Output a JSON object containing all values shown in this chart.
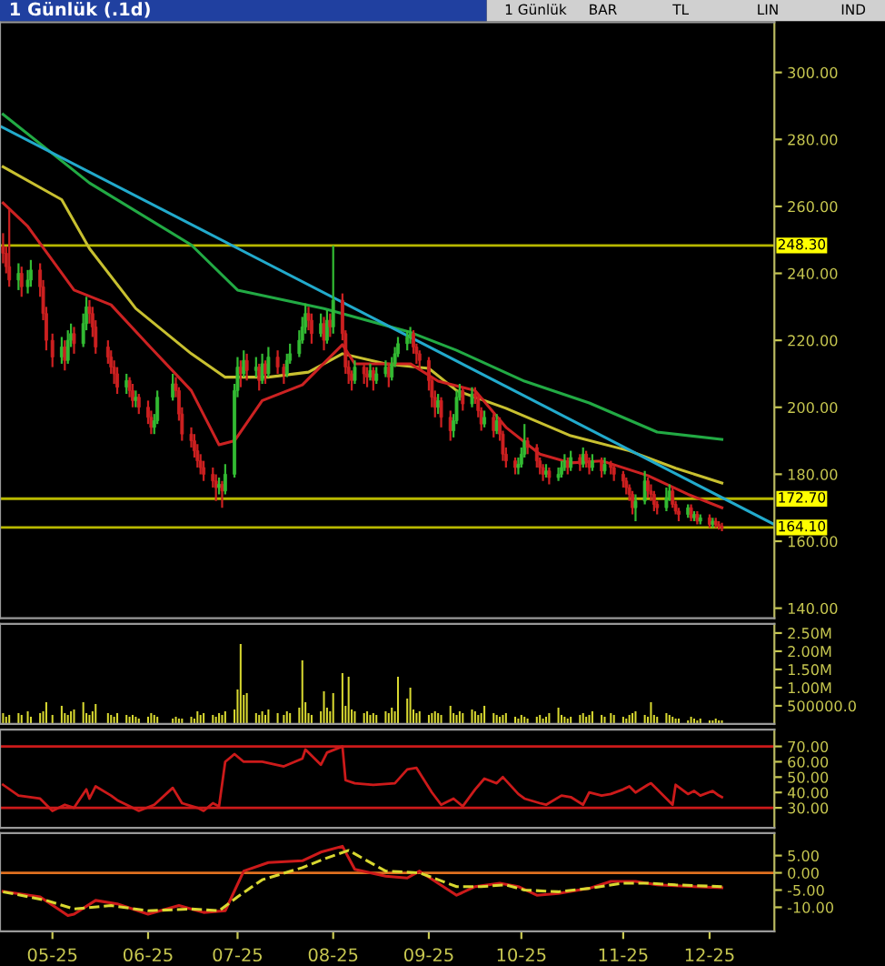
{
  "chart_data": [
    {
      "type": "candlestick",
      "title": "1 Günlük (.1d)",
      "annotations": [
        "1 Günlük",
        "BAR",
        "TL",
        "LIN",
        "IND"
      ],
      "x": [
        "2025-04-16",
        "2025-04-17",
        "2025-04-18",
        "2025-04-21",
        "2025-04-22",
        "2025-04-24",
        "2025-04-25",
        "2025-04-28",
        "2025-04-29",
        "2025-04-30",
        "2025-05-02",
        "2025-05-05",
        "2025-05-06",
        "2025-05-07",
        "2025-05-08",
        "2025-05-09",
        "2025-05-12",
        "2025-05-13",
        "2025-05-14",
        "2025-05-15",
        "2025-05-16",
        "2025-05-20",
        "2025-05-21",
        "2025-05-22",
        "2025-05-23",
        "2025-05-26",
        "2025-05-27",
        "2025-05-28",
        "2025-05-29",
        "2025-05-30",
        "2025-06-02",
        "2025-06-03",
        "2025-06-04",
        "2025-06-05",
        "2025-06-10",
        "2025-06-11",
        "2025-06-12",
        "2025-06-13",
        "2025-06-16",
        "2025-06-17",
        "2025-06-18",
        "2025-06-19",
        "2025-06-20",
        "2025-06-23",
        "2025-06-24",
        "2025-06-25",
        "2025-06-26",
        "2025-06-27",
        "2025-06-30",
        "2025-07-01",
        "2025-07-02",
        "2025-07-03",
        "2025-07-04",
        "2025-07-07",
        "2025-07-08",
        "2025-07-09",
        "2025-07-10",
        "2025-07-11",
        "2025-07-14",
        "2025-07-16",
        "2025-07-17",
        "2025-07-18",
        "2025-07-21",
        "2025-07-22",
        "2025-07-23",
        "2025-07-24",
        "2025-07-25",
        "2025-07-28",
        "2025-07-29",
        "2025-07-30",
        "2025-07-31",
        "2025-08-01",
        "2025-08-04",
        "2025-08-05",
        "2025-08-06",
        "2025-08-07",
        "2025-08-08",
        "2025-08-11",
        "2025-08-12",
        "2025-08-13",
        "2025-08-14",
        "2025-08-15",
        "2025-08-18",
        "2025-08-19",
        "2025-08-20",
        "2025-08-21",
        "2025-08-22",
        "2025-08-25",
        "2025-08-26",
        "2025-08-27",
        "2025-08-28",
        "2025-08-29",
        "2025-09-01",
        "2025-09-02",
        "2025-09-03",
        "2025-09-04",
        "2025-09-05",
        "2025-09-08",
        "2025-09-09",
        "2025-09-10",
        "2025-09-11",
        "2025-09-12",
        "2025-09-15",
        "2025-09-16",
        "2025-09-17",
        "2025-09-18",
        "2025-09-19",
        "2025-09-22",
        "2025-09-23",
        "2025-09-24",
        "2025-09-25",
        "2025-09-26",
        "2025-09-29",
        "2025-09-30",
        "2025-10-01",
        "2025-10-02",
        "2025-10-03",
        "2025-10-06",
        "2025-10-07",
        "2025-10-08",
        "2025-10-09",
        "2025-10-10",
        "2025-10-13",
        "2025-10-14",
        "2025-10-15",
        "2025-10-16",
        "2025-10-17",
        "2025-10-20",
        "2025-10-21",
        "2025-10-22",
        "2025-10-23",
        "2025-10-24",
        "2025-10-27",
        "2025-10-28",
        "2025-10-30",
        "2025-10-31",
        "2025-11-03",
        "2025-11-04",
        "2025-11-05",
        "2025-11-06",
        "2025-11-07",
        "2025-11-10",
        "2025-11-11",
        "2025-11-12",
        "2025-11-13",
        "2025-11-14",
        "2025-11-17",
        "2025-11-18",
        "2025-11-19",
        "2025-11-20",
        "2025-11-21",
        "2025-11-24",
        "2025-11-25",
        "2025-11-26",
        "2025-11-27",
        "2025-11-28",
        "2025-12-01",
        "2025-12-02",
        "2025-12-03",
        "2025-12-04",
        "2025-12-05"
      ],
      "ohlc": [
        [
          248,
          252,
          243,
          246
        ],
        [
          246,
          248,
          240,
          242
        ],
        [
          242,
          259,
          236,
          238
        ],
        [
          238,
          243,
          235,
          240
        ],
        [
          240,
          242,
          233,
          236
        ],
        [
          236,
          241,
          234,
          238
        ],
        [
          238,
          244,
          236,
          241
        ],
        [
          241,
          243,
          233,
          236
        ],
        [
          236,
          238,
          226,
          228
        ],
        [
          228,
          230,
          217,
          220
        ],
        [
          220,
          222,
          212,
          215
        ],
        [
          215,
          221,
          213,
          218
        ],
        [
          218,
          220,
          211,
          214
        ],
        [
          214,
          223,
          213,
          220
        ],
        [
          220,
          225,
          218,
          222
        ],
        [
          222,
          224,
          216,
          219
        ],
        [
          219,
          228,
          218,
          225
        ],
        [
          225,
          233,
          223,
          230
        ],
        [
          230,
          232,
          225,
          228
        ],
        [
          228,
          230,
          221,
          224
        ],
        [
          224,
          226,
          216,
          218
        ],
        [
          218,
          220,
          213,
          215
        ],
        [
          215,
          217,
          210,
          212
        ],
        [
          212,
          214,
          207,
          210
        ],
        [
          210,
          212,
          204,
          206
        ],
        [
          206,
          210,
          204,
          208
        ],
        [
          208,
          209,
          203,
          205
        ],
        [
          205,
          207,
          200,
          202
        ],
        [
          202,
          205,
          200,
          203
        ],
        [
          203,
          204,
          198,
          200
        ],
        [
          200,
          202,
          195,
          197
        ],
        [
          197,
          199,
          192,
          194
        ],
        [
          194,
          198,
          192,
          196
        ],
        [
          196,
          205,
          195,
          203
        ],
        [
          203,
          210,
          202,
          207
        ],
        [
          207,
          209,
          203,
          205
        ],
        [
          205,
          206,
          196,
          198
        ],
        [
          198,
          200,
          190,
          192
        ],
        [
          192,
          194,
          188,
          190
        ],
        [
          190,
          192,
          185,
          187
        ],
        [
          187,
          189,
          182,
          184
        ],
        [
          184,
          186,
          180,
          182
        ],
        [
          182,
          184,
          178,
          180
        ],
        [
          180,
          182,
          176,
          178
        ],
        [
          178,
          180,
          172,
          176
        ],
        [
          176,
          179,
          174,
          177
        ],
        [
          177,
          178,
          170,
          175
        ],
        [
          175,
          183,
          174,
          180
        ],
        [
          180,
          207,
          179,
          205
        ],
        [
          205,
          215,
          203,
          212
        ],
        [
          212,
          214,
          206,
          210
        ],
        [
          210,
          217,
          209,
          214
        ],
        [
          214,
          216,
          208,
          211
        ],
        [
          211,
          215,
          209,
          212
        ],
        [
          212,
          213,
          205,
          208
        ],
        [
          208,
          216,
          207,
          213
        ],
        [
          213,
          214,
          207,
          210
        ],
        [
          210,
          218,
          209,
          215
        ],
        [
          215,
          217,
          210,
          212
        ],
        [
          212,
          213,
          207,
          210
        ],
        [
          210,
          216,
          209,
          214
        ],
        [
          214,
          219,
          213,
          216
        ],
        [
          216,
          223,
          215,
          220
        ],
        [
          220,
          227,
          219,
          224
        ],
        [
          224,
          231,
          222,
          228
        ],
        [
          228,
          230,
          223,
          226
        ],
        [
          226,
          228,
          219,
          222
        ],
        [
          222,
          228,
          221,
          225
        ],
        [
          225,
          227,
          217,
          220
        ],
        [
          220,
          229,
          219,
          226
        ],
        [
          226,
          228,
          221,
          224
        ],
        [
          224,
          248.3,
          222,
          232
        ],
        [
          232,
          234,
          220,
          222
        ],
        [
          222,
          223,
          210,
          212
        ],
        [
          212,
          214,
          207,
          210
        ],
        [
          210,
          211,
          205,
          208
        ],
        [
          208,
          214,
          207,
          212
        ],
        [
          212,
          213,
          207,
          210
        ],
        [
          210,
          212,
          206,
          209
        ],
        [
          209,
          213,
          208,
          211
        ],
        [
          211,
          212,
          205,
          208
        ],
        [
          208,
          212,
          207,
          210
        ],
        [
          210,
          214,
          209,
          212
        ],
        [
          212,
          213,
          206,
          209
        ],
        [
          209,
          215,
          208,
          213
        ],
        [
          213,
          218,
          212,
          216
        ],
        [
          216,
          221,
          215,
          219
        ],
        [
          219,
          223,
          217,
          221
        ],
        [
          221,
          224,
          219,
          222
        ],
        [
          222,
          223,
          216,
          218
        ],
        [
          218,
          219,
          213,
          216
        ],
        [
          216,
          217,
          211,
          214
        ],
        [
          214,
          215,
          205,
          208
        ],
        [
          208,
          209,
          200,
          203
        ],
        [
          203,
          205,
          197,
          200
        ],
        [
          200,
          204,
          198,
          202
        ],
        [
          202,
          203,
          194,
          197
        ],
        [
          197,
          199,
          190,
          193
        ],
        [
          193,
          198,
          191,
          196
        ],
        [
          196,
          205,
          195,
          203
        ],
        [
          203,
          207,
          202,
          205
        ],
        [
          205,
          206,
          199,
          201
        ],
        [
          201,
          206,
          200,
          204
        ],
        [
          204,
          206,
          201,
          203
        ],
        [
          203,
          204,
          197,
          199
        ],
        [
          199,
          200,
          193,
          195
        ],
        [
          195,
          199,
          194,
          197
        ],
        [
          197,
          198,
          191,
          193
        ],
        [
          193,
          198,
          192,
          196
        ],
        [
          196,
          197,
          190,
          192
        ],
        [
          192,
          193,
          184,
          186
        ],
        [
          186,
          188,
          182,
          184
        ],
        [
          184,
          185,
          180,
          182
        ],
        [
          182,
          185,
          180,
          183
        ],
        [
          183,
          188,
          182,
          186
        ],
        [
          186,
          195,
          185,
          190
        ],
        [
          190,
          191,
          186,
          188
        ],
        [
          188,
          189,
          182,
          184
        ],
        [
          184,
          185,
          180,
          182
        ],
        [
          182,
          183,
          178,
          180
        ],
        [
          180,
          183,
          179,
          181
        ],
        [
          181,
          182,
          177,
          179
        ],
        [
          179,
          182,
          178,
          180
        ],
        [
          180,
          184,
          179,
          182
        ],
        [
          182,
          186,
          181,
          184
        ],
        [
          184,
          185,
          180,
          182
        ],
        [
          182,
          187,
          181,
          185
        ],
        [
          185,
          186,
          181,
          183
        ],
        [
          183,
          188,
          182,
          186
        ],
        [
          186,
          187,
          182,
          184
        ],
        [
          184,
          185,
          180,
          182
        ],
        [
          182,
          186,
          181,
          184
        ],
        [
          184,
          185,
          179,
          181
        ],
        [
          181,
          185,
          180,
          183
        ],
        [
          183,
          184,
          180,
          182
        ],
        [
          182,
          183,
          178,
          180
        ],
        [
          180,
          181,
          176,
          178
        ],
        [
          178,
          179,
          174,
          176
        ],
        [
          176,
          177,
          172,
          174
        ],
        [
          174,
          175,
          168,
          170
        ],
        [
          170,
          174,
          166,
          172
        ],
        [
          172,
          181,
          171,
          178
        ],
        [
          178,
          179,
          173,
          175
        ],
        [
          175,
          177,
          172,
          174
        ],
        [
          174,
          175,
          169,
          171
        ],
        [
          171,
          172,
          168,
          170
        ],
        [
          170,
          176,
          169,
          173
        ],
        [
          173,
          177,
          172,
          175
        ],
        [
          175,
          176,
          170,
          171
        ],
        [
          171,
          172,
          168,
          169
        ],
        [
          169,
          170,
          166,
          168
        ],
        [
          168,
          171,
          167,
          170
        ],
        [
          170,
          171,
          166,
          167
        ],
        [
          167,
          169,
          166,
          168
        ],
        [
          168,
          169,
          165,
          166
        ],
        [
          166,
          168,
          165,
          167
        ],
        [
          167,
          168,
          164,
          165
        ],
        [
          165,
          167,
          164,
          166
        ],
        [
          166,
          167,
          164,
          165
        ],
        [
          165,
          166,
          163.5,
          164.5
        ],
        [
          164.5,
          165.5,
          163,
          164
        ]
      ],
      "colors": [
        "#cc2020",
        "#cc2020",
        "#cc2020",
        "#33bb33",
        "#cc2020",
        "#33bb33",
        "#33bb33",
        "#cc2020",
        "#cc2020",
        "#cc2020",
        "#cc2020",
        "#33bb33",
        "#cc2020",
        "#33bb33",
        "#33bb33",
        "#cc2020",
        "#33bb33",
        "#33bb33",
        "#cc2020",
        "#cc2020",
        "#cc2020",
        "#cc2020",
        "#cc2020",
        "#cc2020",
        "#cc2020",
        "#33bb33",
        "#cc2020",
        "#cc2020",
        "#33bb33",
        "#cc2020",
        "#cc2020",
        "#cc2020",
        "#33bb33",
        "#33bb33",
        "#33bb33",
        "#cc2020",
        "#cc2020",
        "#cc2020",
        "#cc2020",
        "#cc2020",
        "#cc2020",
        "#cc2020",
        "#cc2020",
        "#cc2020",
        "#cc2020",
        "#33bb33",
        "#cc2020",
        "#33bb33",
        "#33bb33",
        "#33bb33",
        "#cc2020",
        "#33bb33",
        "#cc2020",
        "#33bb33",
        "#cc2020",
        "#33bb33",
        "#cc2020",
        "#33bb33",
        "#cc2020",
        "#cc2020",
        "#33bb33",
        "#33bb33",
        "#33bb33",
        "#33bb33",
        "#33bb33",
        "#cc2020",
        "#cc2020",
        "#33bb33",
        "#cc2020",
        "#33bb33",
        "#cc2020",
        "#33bb33",
        "#cc2020",
        "#cc2020",
        "#cc2020",
        "#cc2020",
        "#33bb33",
        "#cc2020",
        "#cc2020",
        "#33bb33",
        "#cc2020",
        "#33bb33",
        "#33bb33",
        "#cc2020",
        "#33bb33",
        "#33bb33",
        "#33bb33",
        "#33bb33",
        "#33bb33",
        "#cc2020",
        "#cc2020",
        "#cc2020",
        "#cc2020",
        "#cc2020",
        "#cc2020",
        "#33bb33",
        "#cc2020",
        "#cc2020",
        "#33bb33",
        "#33bb33",
        "#33bb33",
        "#cc2020",
        "#33bb33",
        "#cc2020",
        "#cc2020",
        "#cc2020",
        "#33bb33",
        "#cc2020",
        "#33bb33",
        "#cc2020",
        "#cc2020",
        "#cc2020",
        "#cc2020",
        "#33bb33",
        "#33bb33",
        "#33bb33",
        "#cc2020",
        "#cc2020",
        "#cc2020",
        "#cc2020",
        "#33bb33",
        "#cc2020",
        "#33bb33",
        "#33bb33",
        "#33bb33",
        "#cc2020",
        "#33bb33",
        "#cc2020",
        "#33bb33",
        "#cc2020",
        "#cc2020",
        "#33bb33",
        "#cc2020",
        "#33bb33",
        "#cc2020",
        "#cc2020",
        "#cc2020",
        "#cc2020",
        "#cc2020",
        "#cc2020",
        "#33bb33",
        "#33bb33",
        "#cc2020",
        "#cc2020",
        "#cc2020",
        "#cc2020",
        "#33bb33",
        "#33bb33",
        "#cc2020",
        "#cc2020",
        "#cc2020",
        "#33bb33",
        "#cc2020",
        "#33bb33",
        "#cc2020",
        "#33bb33",
        "#cc2020",
        "#33bb33",
        "#cc2020",
        "#cc2020",
        "#cc2020"
      ],
      "series": [
        {
          "type": "line",
          "color": "#22aa44",
          "x": [
            "2025-04-16",
            "2025-05-14",
            "2025-06-16",
            "2025-07-01",
            "2025-07-29",
            "2025-08-26",
            "2025-09-10",
            "2025-10-02",
            "2025-10-23",
            "2025-11-14",
            "2025-12-05"
          ],
          "values": [
            287.5,
            267,
            248.5,
            235,
            229.5,
            222.4,
            217,
            207.8,
            201.3,
            192.6,
            190.4
          ]
        },
        {
          "type": "line",
          "color": "#c8c030",
          "x": [
            "2025-04-16",
            "2025-05-05",
            "2025-05-14",
            "2025-05-29",
            "2025-06-16",
            "2025-06-27",
            "2025-07-11",
            "2025-07-24",
            "2025-08-04",
            "2025-08-18",
            "2025-09-01",
            "2025-09-10",
            "2025-09-26",
            "2025-10-17",
            "2025-11-05",
            "2025-11-20",
            "2025-12-05"
          ],
          "values": [
            271.8,
            262,
            247.4,
            229.5,
            216,
            209,
            209,
            210.5,
            216,
            213,
            211.6,
            205,
            199.7,
            191.5,
            187,
            181.8,
            177.4
          ]
        },
        {
          "type": "line",
          "color": "#cc2222",
          "x": [
            "2025-04-16",
            "2025-04-24",
            "2025-05-09",
            "2025-05-21",
            "2025-06-02",
            "2025-06-16",
            "2025-06-25",
            "2025-06-30",
            "2025-07-09",
            "2025-07-22",
            "2025-08-04",
            "2025-08-08",
            "2025-08-26",
            "2025-09-04",
            "2025-09-16",
            "2025-09-26",
            "2025-10-07",
            "2025-10-17",
            "2025-10-27",
            "2025-11-11",
            "2025-11-24",
            "2025-12-05"
          ],
          "values": [
            261,
            254,
            235,
            230.6,
            218.7,
            205,
            188.8,
            190,
            202,
            206.7,
            218.7,
            213,
            213,
            207.8,
            205,
            194,
            186,
            183.4,
            184,
            179.6,
            174,
            170
          ]
        },
        {
          "type": "line",
          "color": "#22aacc",
          "x": [
            "2025-04-15",
            "2025-12-22"
          ],
          "values": [
            284,
            165
          ]
        }
      ],
      "xlim": [
        "2025-04-15",
        "2025-12-22"
      ],
      "ylim": [
        137,
        315
      ],
      "yticks": [
        {
          "value": 140,
          "label": "140.00"
        },
        {
          "value": 160,
          "label": "160.00"
        },
        {
          "value": 180,
          "label": "180.00"
        },
        {
          "value": 200,
          "label": "200.00"
        },
        {
          "value": 220,
          "label": "220.00"
        },
        {
          "value": 240,
          "label": "240.00"
        },
        {
          "value": 260,
          "label": "260.00"
        },
        {
          "value": 280,
          "label": "280.00"
        },
        {
          "value": 300,
          "label": "300.00"
        }
      ],
      "ref_lines": [
        {
          "axis": "y",
          "value": 248.3,
          "label": "248.30",
          "color": "#b8b800"
        },
        {
          "axis": "y",
          "value": 172.7,
          "label": "172.70",
          "color": "#b8b800"
        },
        {
          "axis": "y",
          "value": 164.1,
          "label": "164.10",
          "color": "#b8b800"
        }
      ],
      "tick_labels": "y"
    },
    {
      "type": "bar",
      "color": "#d8d830",
      "x": [
        "2025-04-16",
        "2025-04-17",
        "2025-04-18",
        "2025-04-21",
        "2025-04-22",
        "2025-04-24",
        "2025-04-25",
        "2025-04-28",
        "2025-04-29",
        "2025-04-30",
        "2025-05-02",
        "2025-05-05",
        "2025-05-06",
        "2025-05-07",
        "2025-05-08",
        "2025-05-09",
        "2025-05-12",
        "2025-05-13",
        "2025-05-14",
        "2025-05-15",
        "2025-05-16",
        "2025-05-20",
        "2025-05-21",
        "2025-05-22",
        "2025-05-23",
        "2025-05-26",
        "2025-05-27",
        "2025-05-28",
        "2025-05-29",
        "2025-05-30",
        "2025-06-02",
        "2025-06-03",
        "2025-06-04",
        "2025-06-05",
        "2025-06-10",
        "2025-06-11",
        "2025-06-12",
        "2025-06-13",
        "2025-06-16",
        "2025-06-17",
        "2025-06-18",
        "2025-06-19",
        "2025-06-20",
        "2025-06-23",
        "2025-06-24",
        "2025-06-25",
        "2025-06-26",
        "2025-06-27",
        "2025-06-30",
        "2025-07-01",
        "2025-07-02",
        "2025-07-03",
        "2025-07-04",
        "2025-07-07",
        "2025-07-08",
        "2025-07-09",
        "2025-07-10",
        "2025-07-11",
        "2025-07-14",
        "2025-07-16",
        "2025-07-17",
        "2025-07-18",
        "2025-07-21",
        "2025-07-22",
        "2025-07-23",
        "2025-07-24",
        "2025-07-25",
        "2025-07-28",
        "2025-07-29",
        "2025-07-30",
        "2025-07-31",
        "2025-08-01",
        "2025-08-04",
        "2025-08-05",
        "2025-08-06",
        "2025-08-07",
        "2025-08-08",
        "2025-08-11",
        "2025-08-12",
        "2025-08-13",
        "2025-08-14",
        "2025-08-15",
        "2025-08-18",
        "2025-08-19",
        "2025-08-20",
        "2025-08-21",
        "2025-08-22",
        "2025-08-25",
        "2025-08-26",
        "2025-08-27",
        "2025-08-28",
        "2025-08-29",
        "2025-09-01",
        "2025-09-02",
        "2025-09-03",
        "2025-09-04",
        "2025-09-05",
        "2025-09-08",
        "2025-09-09",
        "2025-09-10",
        "2025-09-11",
        "2025-09-12",
        "2025-09-15",
        "2025-09-16",
        "2025-09-17",
        "2025-09-18",
        "2025-09-19",
        "2025-09-22",
        "2025-09-23",
        "2025-09-24",
        "2025-09-25",
        "2025-09-26",
        "2025-09-29",
        "2025-09-30",
        "2025-10-01",
        "2025-10-02",
        "2025-10-03",
        "2025-10-06",
        "2025-10-07",
        "2025-10-08",
        "2025-10-09",
        "2025-10-10",
        "2025-10-13",
        "2025-10-14",
        "2025-10-15",
        "2025-10-16",
        "2025-10-17",
        "2025-10-20",
        "2025-10-21",
        "2025-10-22",
        "2025-10-23",
        "2025-10-24",
        "2025-10-27",
        "2025-10-28",
        "2025-10-30",
        "2025-10-31",
        "2025-11-03",
        "2025-11-04",
        "2025-11-05",
        "2025-11-06",
        "2025-11-07",
        "2025-11-10",
        "2025-11-11",
        "2025-11-12",
        "2025-11-13",
        "2025-11-14",
        "2025-11-17",
        "2025-11-18",
        "2025-11-19",
        "2025-11-20",
        "2025-11-21",
        "2025-11-24",
        "2025-11-25",
        "2025-11-26",
        "2025-11-27",
        "2025-11-28",
        "2025-12-01",
        "2025-12-02",
        "2025-12-03",
        "2025-12-04",
        "2025-12-05"
      ],
      "values": [
        300000,
        200000,
        250000,
        300000,
        250000,
        350000,
        200000,
        300000,
        350000,
        600000,
        250000,
        500000,
        300000,
        250000,
        350000,
        400000,
        600000,
        300000,
        250000,
        350000,
        550000,
        300000,
        250000,
        200000,
        300000,
        250000,
        200000,
        250000,
        200000,
        150000,
        200000,
        300000,
        250000,
        200000,
        150000,
        200000,
        150000,
        150000,
        200000,
        150000,
        350000,
        250000,
        300000,
        250000,
        200000,
        300000,
        250000,
        350000,
        400000,
        950000,
        2200000,
        800000,
        850000,
        300000,
        250000,
        350000,
        250000,
        400000,
        300000,
        250000,
        350000,
        300000,
        450000,
        1750000,
        600000,
        300000,
        250000,
        350000,
        900000,
        450000,
        350000,
        850000,
        1400000,
        500000,
        1300000,
        400000,
        350000,
        300000,
        350000,
        250000,
        300000,
        250000,
        350000,
        300000,
        450000,
        350000,
        1300000,
        700000,
        1000000,
        400000,
        300000,
        350000,
        250000,
        300000,
        350000,
        300000,
        250000,
        500000,
        300000,
        250000,
        350000,
        300000,
        400000,
        350000,
        250000,
        300000,
        500000,
        300000,
        250000,
        200000,
        250000,
        300000,
        200000,
        150000,
        250000,
        200000,
        150000,
        200000,
        250000,
        150000,
        200000,
        300000,
        450000,
        250000,
        200000,
        150000,
        200000,
        250000,
        300000,
        200000,
        250000,
        350000,
        250000,
        200000,
        300000,
        250000,
        200000,
        150000,
        250000,
        300000,
        350000,
        250000,
        200000,
        600000,
        250000,
        200000,
        300000,
        250000,
        200000,
        150000,
        150000,
        100000,
        200000,
        150000,
        100000,
        150000,
        100000,
        100000,
        150000,
        100000,
        100000
      ],
      "xlim": [
        "2025-04-15",
        "2025-12-22"
      ],
      "ylim": [
        0,
        2750000
      ],
      "yticks": [
        {
          "value": 500000,
          "label": "500000.0"
        },
        {
          "value": 1000000,
          "label": "1.00M"
        },
        {
          "value": 1500000,
          "label": "1.50M"
        },
        {
          "value": 2000000,
          "label": "2.00M"
        },
        {
          "value": 2500000,
          "label": "2.50M"
        }
      ],
      "tick_labels": "y"
    },
    {
      "type": "line",
      "color": "#cc1a1a",
      "x": [
        "2025-04-16",
        "2025-04-21",
        "2025-04-28",
        "2025-05-02",
        "2025-05-06",
        "2025-05-09",
        "2025-05-13",
        "2025-05-14",
        "2025-05-16",
        "2025-05-21",
        "2025-05-23",
        "2025-05-28",
        "2025-05-30",
        "2025-06-04",
        "2025-06-10",
        "2025-06-13",
        "2025-06-18",
        "2025-06-20",
        "2025-06-23",
        "2025-06-25",
        "2025-06-27",
        "2025-06-30",
        "2025-07-03",
        "2025-07-09",
        "2025-07-16",
        "2025-07-22",
        "2025-07-23",
        "2025-07-28",
        "2025-07-30",
        "2025-08-04",
        "2025-08-05",
        "2025-08-08",
        "2025-08-14",
        "2025-08-21",
        "2025-08-25",
        "2025-08-28",
        "2025-09-02",
        "2025-09-05",
        "2025-09-09",
        "2025-09-12",
        "2025-09-16",
        "2025-09-19",
        "2025-09-23",
        "2025-09-25",
        "2025-09-30",
        "2025-10-02",
        "2025-10-07",
        "2025-10-09",
        "2025-10-14",
        "2025-10-17",
        "2025-10-21",
        "2025-10-23",
        "2025-10-27",
        "2025-10-30",
        "2025-11-03",
        "2025-11-05",
        "2025-11-07",
        "2025-11-11",
        "2025-11-12",
        "2025-11-14",
        "2025-11-19",
        "2025-11-20",
        "2025-11-24",
        "2025-11-26",
        "2025-11-28",
        "2025-12-02",
        "2025-12-04",
        "2025-12-05"
      ],
      "values": [
        45,
        38,
        36,
        28,
        32,
        30,
        42,
        36,
        44,
        38,
        35,
        30,
        28,
        32,
        43,
        33,
        30,
        28,
        33,
        31,
        60,
        65,
        60,
        60,
        57,
        62,
        68,
        58,
        66,
        70,
        48,
        46,
        45,
        46,
        55,
        56,
        40,
        32,
        36,
        31,
        42,
        49,
        46,
        50,
        39,
        36,
        33,
        32,
        38,
        37,
        32,
        40,
        38,
        39,
        42,
        44,
        40,
        45,
        46,
        42,
        32,
        45,
        39,
        41,
        38,
        41,
        38,
        37
      ],
      "xlim": [
        "2025-04-15",
        "2025-12-22"
      ],
      "ylim": [
        17,
        81
      ],
      "yticks": [
        {
          "value": 30,
          "label": "30.00"
        },
        {
          "value": 40,
          "label": "40.00"
        },
        {
          "value": 50,
          "label": "50.00"
        },
        {
          "value": 60,
          "label": "60.00"
        },
        {
          "value": 70,
          "label": "70.00"
        }
      ],
      "ref_lines": [
        {
          "axis": "y",
          "value": 70,
          "color": "#cc1a1a"
        },
        {
          "axis": "y",
          "value": 30,
          "color": "#cc1a1a"
        }
      ],
      "tick_labels": "y"
    },
    {
      "type": "line",
      "series": [
        {
          "color": "#cc1a1a",
          "line_style": "solid",
          "x": [
            "2025-04-16",
            "2025-04-28",
            "2025-05-07",
            "2025-05-09",
            "2025-05-16",
            "2025-05-23",
            "2025-06-02",
            "2025-06-12",
            "2025-06-20",
            "2025-06-27",
            "2025-07-03",
            "2025-07-11",
            "2025-07-22",
            "2025-07-28",
            "2025-08-04",
            "2025-08-08",
            "2025-08-18",
            "2025-08-25",
            "2025-08-29",
            "2025-09-04",
            "2025-09-10",
            "2025-09-16",
            "2025-09-24",
            "2025-09-30",
            "2025-10-06",
            "2025-10-13",
            "2025-10-23",
            "2025-10-30",
            "2025-11-07",
            "2025-11-14",
            "2025-11-26",
            "2025-12-05"
          ],
          "values": [
            -5.4,
            -7,
            -12.4,
            -12,
            -8,
            -9,
            -12,
            -9.5,
            -11.5,
            -11,
            0.5,
            3,
            3.5,
            6,
            7.7,
            1,
            -1,
            -1.5,
            0.5,
            -3,
            -6.5,
            -4,
            -3,
            -4,
            -6.5,
            -6,
            -4.5,
            -2.5,
            -2.5,
            -3.5,
            -4,
            -4.3
          ]
        },
        {
          "color": "#d8d830",
          "line_style": "dashed",
          "x": [
            "2025-04-16",
            "2025-04-30",
            "2025-05-09",
            "2025-05-21",
            "2025-06-02",
            "2025-06-16",
            "2025-06-25",
            "2025-07-01",
            "2025-07-09",
            "2025-07-22",
            "2025-07-29",
            "2025-08-06",
            "2025-08-18",
            "2025-08-29",
            "2025-09-10",
            "2025-09-18",
            "2025-09-26",
            "2025-10-02",
            "2025-10-13",
            "2025-10-23",
            "2025-11-03",
            "2025-11-11",
            "2025-11-20",
            "2025-12-05"
          ],
          "values": [
            -5.5,
            -8,
            -10.5,
            -9.5,
            -11,
            -10.5,
            -11,
            -7,
            -2,
            1.5,
            4,
            6.5,
            0.5,
            0,
            -4,
            -4,
            -3.5,
            -5,
            -5.5,
            -4.5,
            -3,
            -3,
            -3.5,
            -4
          ]
        }
      ],
      "xlim": [
        "2025-04-15",
        "2025-12-22"
      ],
      "ylim": [
        -17,
        11.5
      ],
      "yticks": [
        {
          "value": -10,
          "label": "-10.00"
        },
        {
          "value": -5,
          "label": "-5.00"
        },
        {
          "value": 0,
          "label": "0.00"
        },
        {
          "value": 5,
          "label": "5.00"
        }
      ],
      "xticks": [
        {
          "value": "2025-05-02",
          "label": "05-25"
        },
        {
          "value": "2025-06-02",
          "label": "06-25"
        },
        {
          "value": "2025-07-01",
          "label": "07-25"
        },
        {
          "value": "2025-08-01",
          "label": "08-25"
        },
        {
          "value": "2025-09-01",
          "label": "09-25"
        },
        {
          "value": "2025-10-01",
          "label": "10-25"
        },
        {
          "value": "2025-11-03",
          "label": "11-25"
        },
        {
          "value": "2025-12-01",
          "label": "12-25"
        }
      ],
      "ref_lines": [
        {
          "axis": "y",
          "value": 0,
          "color": "#e07020"
        }
      ]
    }
  ]
}
